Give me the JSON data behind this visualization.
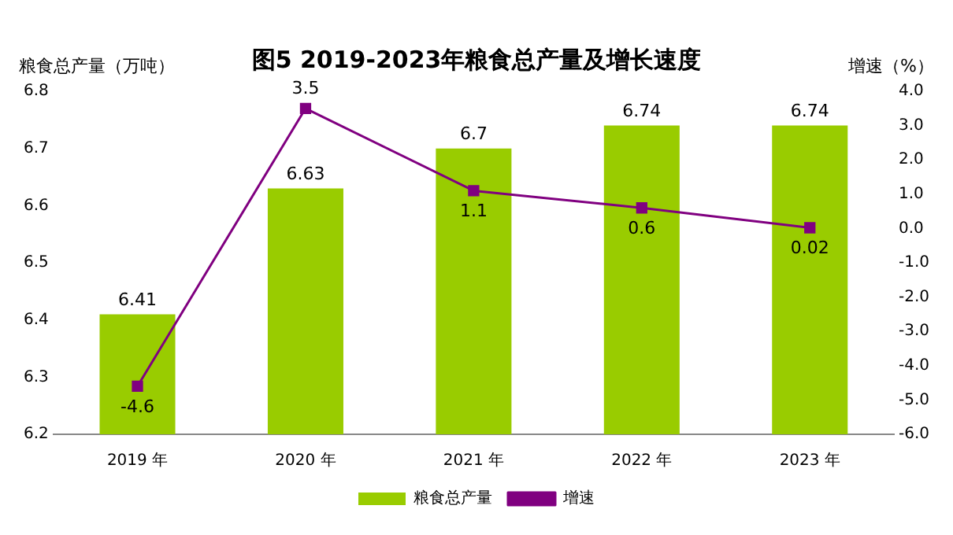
{
  "chart_data": {
    "type": "bar",
    "title": "图5 2019-2023年粮食总产量及增长速度",
    "ylabel": "粮食总产量（万吨）",
    "y2label": "增速（%）",
    "categories": [
      "2019 年",
      "2020 年",
      "2021 年",
      "2022 年",
      "2023 年"
    ],
    "series": [
      {
        "name": "粮食总产量",
        "color": "#99cc00",
        "values": [
          6.41,
          6.63,
          6.7,
          6.74,
          6.74
        ]
      },
      {
        "name": "增速",
        "type": "line",
        "axis": "y2",
        "color": "#800080",
        "values": [
          -4.6,
          3.5,
          1.1,
          0.6,
          0.02
        ]
      }
    ],
    "ylim": [
      6.2,
      6.8
    ],
    "yticks": [
      6.2,
      6.3,
      6.4,
      6.5,
      6.6,
      6.7,
      6.8
    ],
    "y2lim": [
      -6,
      4
    ],
    "y2ticks": [
      {
        "value": -6,
        "label": "-6.0"
      },
      {
        "value": -5,
        "label": "-5.0"
      },
      {
        "value": -4,
        "label": "-4.0"
      },
      {
        "value": -3,
        "label": "-3.0"
      },
      {
        "value": -2,
        "label": "-2.0"
      },
      {
        "value": -1,
        "label": "-1.0"
      },
      {
        "value": 0,
        "label": "0.0"
      },
      {
        "value": 1,
        "label": "1.0"
      },
      {
        "value": 2,
        "label": "2.0"
      },
      {
        "value": 3,
        "label": "3.0"
      },
      {
        "value": 4,
        "label": "4.0"
      }
    ],
    "data_labels": true,
    "grid": false,
    "legend": "bottom",
    "marker": "square",
    "line_style": "solid"
  }
}
